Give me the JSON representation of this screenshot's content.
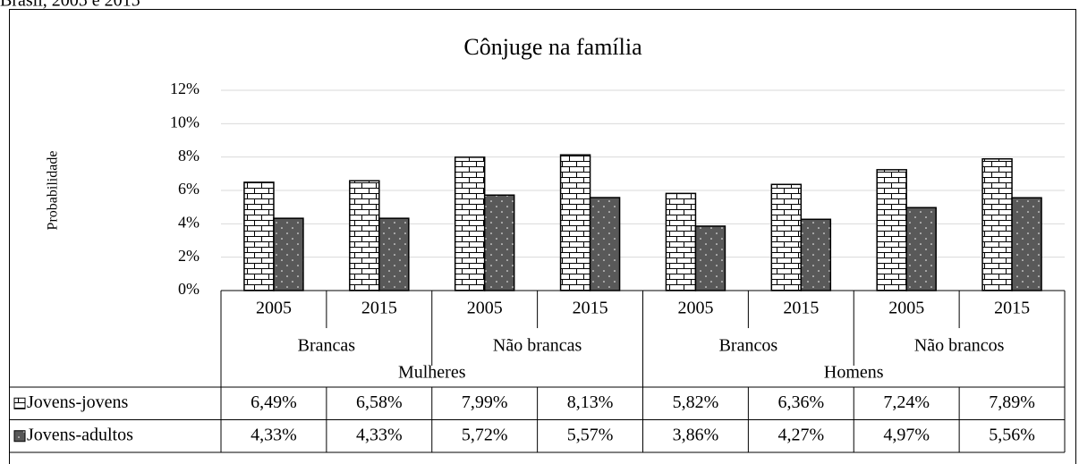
{
  "chart_data": {
    "type": "bar",
    "caption": "Brasil, 2005 e 2015",
    "title": "Cônjuge na família",
    "y_label": "Probabilidade",
    "categories": [
      "2005",
      "2015",
      "2005",
      "2015",
      "2005",
      "2015",
      "2005",
      "2015"
    ],
    "groups": [
      "Brancas",
      "Não brancas",
      "Brancos",
      "Não brancos"
    ],
    "supergroups": [
      "Mulheres",
      "Homens"
    ],
    "series": [
      {
        "name": "Jovens-jovens",
        "color": "#ffffff",
        "values": [
          6.49,
          6.58,
          7.99,
          8.13,
          5.82,
          6.36,
          7.24,
          7.89
        ],
        "value_labels": [
          "6,49%",
          "6,58%",
          "7,99%",
          "8,13%",
          "5,82%",
          "6,36%",
          "7,24%",
          "7,89%"
        ]
      },
      {
        "name": "Jovens-adultos",
        "color": "#595959",
        "values": [
          4.33,
          4.33,
          5.72,
          5.57,
          3.86,
          4.27,
          4.97,
          5.56
        ],
        "value_labels": [
          "4,33%",
          "4,33%",
          "5,72%",
          "5,57%",
          "3,86%",
          "4,27%",
          "4,97%",
          "5,56%"
        ]
      }
    ],
    "ylim": [
      0,
      12
    ],
    "yticks": [
      {
        "value": 0,
        "label": "0%"
      },
      {
        "value": 2,
        "label": "2%"
      },
      {
        "value": 4,
        "label": "4%"
      },
      {
        "value": 6,
        "label": "6%"
      },
      {
        "value": 8,
        "label": "8%"
      },
      {
        "value": 10,
        "label": "10%"
      },
      {
        "value": 12,
        "label": "12%"
      }
    ],
    "grid": true
  }
}
